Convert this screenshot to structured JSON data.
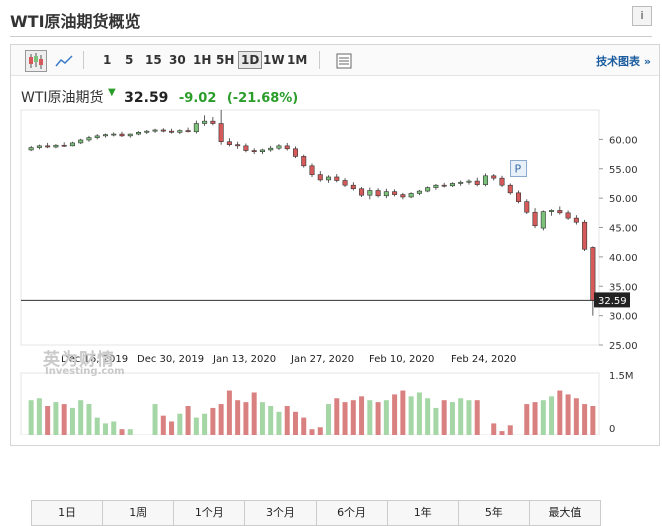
{
  "page": {
    "title": "WTI原油期货概览",
    "info_icon": "i"
  },
  "toolbar": {
    "ranges": [
      "1",
      "5",
      "15",
      "30",
      "1H",
      "5H",
      "1D",
      "1W",
      "1M"
    ],
    "active_range": "1D",
    "tech_chart_link": "技术图表 »"
  },
  "quote": {
    "name": "WTI原油期货",
    "direction": "down",
    "price": "32.59",
    "change": "-9.02",
    "change_pct": "(-21.68%)"
  },
  "chart_data": {
    "type": "candlestick",
    "price_axis_ticks": [
      "60.00",
      "55.00",
      "50.00",
      "45.00",
      "40.00",
      "35.00",
      "30.00",
      "25.00"
    ],
    "volume_axis_ticks": [
      "1.5M",
      "0"
    ],
    "date_ticks": [
      "Dec 16, 2019",
      "Dec 30, 2019",
      "Jan 13, 2020",
      "Jan 27, 2020",
      "Feb 10, 2020",
      "Feb 24, 2020"
    ],
    "last_price_label": "32.59",
    "annotation_marker": "P",
    "ylim": [
      25,
      65
    ],
    "colors": {
      "up": "#7ac27a",
      "down": "#d65a5a",
      "last_line": "#333333"
    },
    "candles": [
      {
        "o": 58.2,
        "h": 58.9,
        "l": 58.0,
        "c": 58.6
      },
      {
        "o": 58.6,
        "h": 59.1,
        "l": 58.3,
        "c": 58.9
      },
      {
        "o": 58.9,
        "h": 59.4,
        "l": 58.5,
        "c": 58.7
      },
      {
        "o": 58.7,
        "h": 59.2,
        "l": 58.5,
        "c": 59.0
      },
      {
        "o": 59.0,
        "h": 59.5,
        "l": 58.7,
        "c": 58.9
      },
      {
        "o": 58.9,
        "h": 59.6,
        "l": 58.8,
        "c": 59.4
      },
      {
        "o": 59.4,
        "h": 60.1,
        "l": 59.2,
        "c": 59.9
      },
      {
        "o": 59.9,
        "h": 60.6,
        "l": 59.6,
        "c": 60.3
      },
      {
        "o": 60.3,
        "h": 60.9,
        "l": 60.0,
        "c": 60.6
      },
      {
        "o": 60.6,
        "h": 61.0,
        "l": 60.3,
        "c": 60.8
      },
      {
        "o": 60.8,
        "h": 61.2,
        "l": 60.5,
        "c": 60.9
      },
      {
        "o": 60.9,
        "h": 61.3,
        "l": 60.4,
        "c": 60.6
      },
      {
        "o": 60.6,
        "h": 61.0,
        "l": 60.3,
        "c": 60.9
      },
      {
        "o": 60.9,
        "h": 61.4,
        "l": 60.7,
        "c": 61.2
      },
      {
        "o": 61.2,
        "h": 61.6,
        "l": 60.9,
        "c": 61.4
      },
      {
        "o": 61.4,
        "h": 61.8,
        "l": 61.1,
        "c": 61.6
      },
      {
        "o": 61.6,
        "h": 61.9,
        "l": 61.2,
        "c": 61.4
      },
      {
        "o": 61.4,
        "h": 61.8,
        "l": 61.0,
        "c": 61.2
      },
      {
        "o": 61.2,
        "h": 61.7,
        "l": 60.9,
        "c": 61.5
      },
      {
        "o": 61.5,
        "h": 62.0,
        "l": 61.2,
        "c": 61.3
      },
      {
        "o": 61.3,
        "h": 63.2,
        "l": 61.0,
        "c": 62.7
      },
      {
        "o": 62.7,
        "h": 64.1,
        "l": 62.3,
        "c": 63.1
      },
      {
        "o": 63.1,
        "h": 63.8,
        "l": 62.4,
        "c": 62.7
      },
      {
        "o": 62.7,
        "h": 65.0,
        "l": 59.1,
        "c": 59.6
      },
      {
        "o": 59.6,
        "h": 60.2,
        "l": 58.8,
        "c": 59.1
      },
      {
        "o": 59.1,
        "h": 59.6,
        "l": 58.4,
        "c": 58.9
      },
      {
        "o": 58.9,
        "h": 59.3,
        "l": 57.8,
        "c": 58.1
      },
      {
        "o": 58.1,
        "h": 58.5,
        "l": 57.5,
        "c": 57.9
      },
      {
        "o": 57.9,
        "h": 58.4,
        "l": 57.5,
        "c": 58.2
      },
      {
        "o": 58.2,
        "h": 58.9,
        "l": 57.9,
        "c": 58.5
      },
      {
        "o": 58.5,
        "h": 59.2,
        "l": 58.2,
        "c": 58.9
      },
      {
        "o": 58.9,
        "h": 59.4,
        "l": 58.1,
        "c": 58.4
      },
      {
        "o": 58.4,
        "h": 58.8,
        "l": 56.8,
        "c": 57.1
      },
      {
        "o": 57.1,
        "h": 57.4,
        "l": 55.2,
        "c": 55.5
      },
      {
        "o": 55.5,
        "h": 55.9,
        "l": 53.6,
        "c": 54.0
      },
      {
        "o": 54.0,
        "h": 54.6,
        "l": 52.8,
        "c": 53.1
      },
      {
        "o": 53.1,
        "h": 53.9,
        "l": 52.6,
        "c": 53.6
      },
      {
        "o": 53.6,
        "h": 54.1,
        "l": 52.7,
        "c": 53.0
      },
      {
        "o": 53.0,
        "h": 53.4,
        "l": 51.9,
        "c": 52.2
      },
      {
        "o": 52.2,
        "h": 52.7,
        "l": 51.3,
        "c": 51.6
      },
      {
        "o": 51.6,
        "h": 51.9,
        "l": 50.2,
        "c": 50.5
      },
      {
        "o": 50.5,
        "h": 51.8,
        "l": 49.8,
        "c": 51.3
      },
      {
        "o": 51.3,
        "h": 51.7,
        "l": 50.1,
        "c": 50.4
      },
      {
        "o": 50.4,
        "h": 51.6,
        "l": 50.0,
        "c": 51.1
      },
      {
        "o": 51.1,
        "h": 51.5,
        "l": 50.3,
        "c": 50.6
      },
      {
        "o": 50.6,
        "h": 50.9,
        "l": 49.8,
        "c": 50.2
      },
      {
        "o": 50.2,
        "h": 51.0,
        "l": 50.0,
        "c": 50.8
      },
      {
        "o": 50.8,
        "h": 51.4,
        "l": 50.5,
        "c": 51.2
      },
      {
        "o": 51.2,
        "h": 52.0,
        "l": 51.0,
        "c": 51.8
      },
      {
        "o": 51.8,
        "h": 52.4,
        "l": 51.4,
        "c": 52.2
      },
      {
        "o": 52.2,
        "h": 52.6,
        "l": 51.8,
        "c": 52.1
      },
      {
        "o": 52.1,
        "h": 52.7,
        "l": 51.9,
        "c": 52.5
      },
      {
        "o": 52.5,
        "h": 53.0,
        "l": 52.1,
        "c": 52.7
      },
      {
        "o": 52.7,
        "h": 53.2,
        "l": 52.3,
        "c": 52.9
      },
      {
        "o": 52.9,
        "h": 53.5,
        "l": 52.0,
        "c": 52.3
      },
      {
        "o": 52.3,
        "h": 54.2,
        "l": 52.0,
        "c": 53.8
      },
      {
        "o": 53.8,
        "h": 54.1,
        "l": 53.0,
        "c": 53.4
      },
      {
        "o": 53.4,
        "h": 53.8,
        "l": 51.9,
        "c": 52.2
      },
      {
        "o": 52.2,
        "h": 52.5,
        "l": 50.6,
        "c": 50.9
      },
      {
        "o": 50.9,
        "h": 51.3,
        "l": 49.1,
        "c": 49.4
      },
      {
        "o": 49.4,
        "h": 49.8,
        "l": 47.3,
        "c": 47.6
      },
      {
        "o": 47.6,
        "h": 48.3,
        "l": 44.9,
        "c": 45.3
      },
      {
        "o": 44.9,
        "h": 47.9,
        "l": 44.5,
        "c": 47.7
      },
      {
        "o": 47.7,
        "h": 48.1,
        "l": 47.0,
        "c": 47.9
      },
      {
        "o": 47.9,
        "h": 48.6,
        "l": 47.2,
        "c": 47.5
      },
      {
        "o": 47.5,
        "h": 47.9,
        "l": 46.3,
        "c": 46.6
      },
      {
        "o": 46.6,
        "h": 47.1,
        "l": 45.5,
        "c": 45.9
      },
      {
        "o": 45.9,
        "h": 46.3,
        "l": 41.0,
        "c": 41.3
      },
      {
        "o": 41.6,
        "h": 41.8,
        "l": 30.0,
        "c": 32.6
      }
    ],
    "volumes": [
      0.9,
      0.95,
      0.75,
      0.85,
      0.8,
      0.7,
      0.9,
      0.8,
      0.45,
      0.3,
      0.35,
      0.15,
      0.15,
      0.0,
      0.0,
      0.8,
      0.5,
      0.35,
      0.55,
      0.75,
      0.45,
      0.55,
      0.7,
      0.8,
      1.15,
      0.9,
      0.85,
      1.1,
      0.85,
      0.75,
      0.6,
      0.75,
      0.6,
      0.45,
      0.15,
      0.2,
      0.8,
      0.95,
      0.85,
      0.9,
      1.0,
      0.9,
      0.85,
      0.9,
      1.05,
      1.15,
      1.0,
      1.1,
      0.95,
      0.7,
      0.9,
      0.85,
      0.95,
      0.9,
      0.9,
      0.0,
      0.3,
      0.1,
      0.25,
      0.0,
      0.8,
      0.85,
      0.9,
      1.0,
      1.15,
      1.05,
      0.95,
      0.8,
      0.75
    ]
  },
  "range_buttons": [
    "1日",
    "1周",
    "1个月",
    "3个月",
    "6个月",
    "1年",
    "5年",
    "最大值"
  ]
}
